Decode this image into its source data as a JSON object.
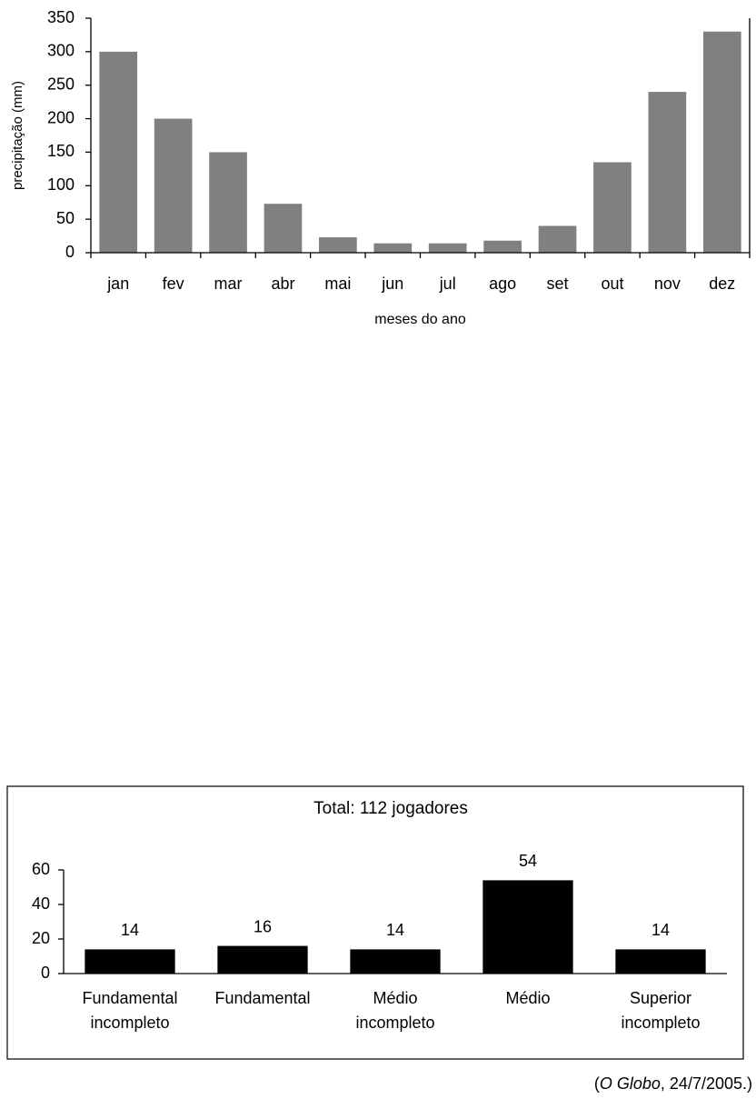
{
  "chart_data": [
    {
      "type": "bar",
      "x_label": "meses do ano",
      "y_label": "precipitação (mm)",
      "categories": [
        "jan",
        "fev",
        "mar",
        "abr",
        "mai",
        "jun",
        "jul",
        "ago",
        "set",
        "out",
        "nov",
        "dez"
      ],
      "values": [
        300,
        200,
        150,
        73,
        23,
        14,
        14,
        18,
        40,
        135,
        240,
        330
      ],
      "color": "#808080",
      "ylim": [
        0,
        350
      ],
      "yticks": [
        0,
        50,
        100,
        150,
        200,
        250,
        300,
        350
      ],
      "grid": false
    },
    {
      "type": "bar",
      "title": "Total: 112 jogadores",
      "categories": [
        "Fundamental incompleto",
        "Fundamental",
        "Médio incompleto",
        "Médio",
        "Superior incompleto"
      ],
      "values": [
        14,
        16,
        14,
        54,
        14
      ],
      "data_labels": true,
      "color": "#000000",
      "ylim": [
        0,
        60
      ],
      "yticks": [
        0,
        20,
        40,
        60
      ],
      "grid": false
    }
  ],
  "source": {
    "open": "(",
    "italic": "O Globo",
    "rest": ", 24/7/2005.)"
  }
}
